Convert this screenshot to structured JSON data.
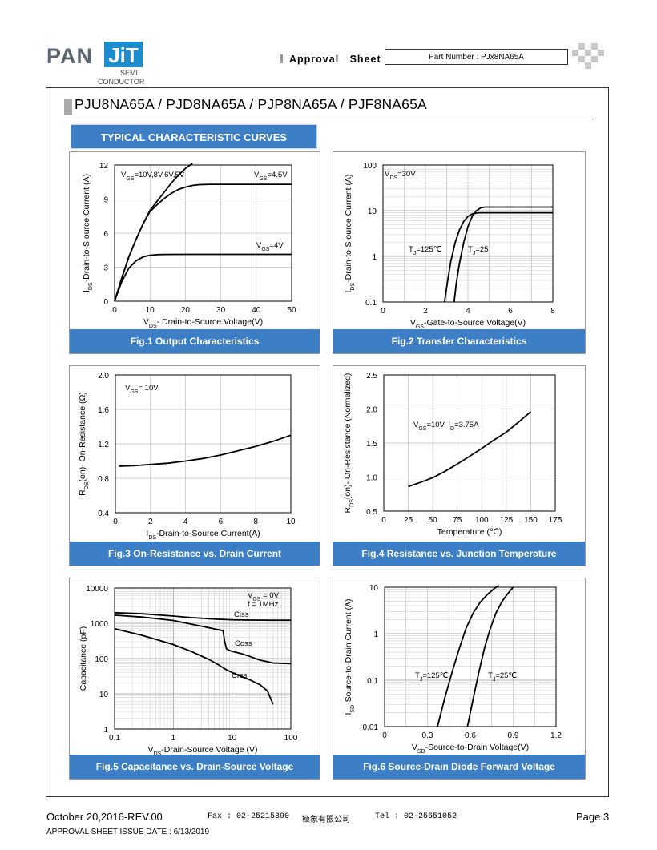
{
  "header": {
    "logo_pan": "PAN",
    "logo_jit": "JiT",
    "logo_semi": "SEMI",
    "logo_conductor": "CONDUCTOR",
    "approval": "Approval   Sheet",
    "part_number": "Part Number : PJx8NA65A"
  },
  "title": "PJU8NA65A / PJD8NA65A / PJP8NA65A / PJF8NA65A",
  "section_title": "TYPICAL CHARACTERISTIC CURVES",
  "colors": {
    "accent": "#3c7fc6",
    "grid": "#bdbdbd"
  },
  "figures": [
    {
      "caption": "Fig.1 Output Characteristics"
    },
    {
      "caption": "Fig.2 Transfer Characteristics"
    },
    {
      "caption": "Fig.3 On-Resistance vs. Drain Current"
    },
    {
      "caption": "Fig.4 Resistance vs. Junction Temperature"
    },
    {
      "caption": "Fig.5 Capacitance vs. Drain-Source Voltage"
    },
    {
      "caption": "Fig.6 Source-Drain Diode Forward Voltage"
    }
  ],
  "chart_data": [
    {
      "type": "line",
      "xlabel": "VDS- Drain-to-Source Voltage(V)",
      "ylabel": "IDS-Drain-to-S ource Current (A)",
      "xlim": [
        0,
        50
      ],
      "ylim": [
        0,
        12
      ],
      "xticks": [
        "0",
        "10",
        "20",
        "30",
        "40",
        "50"
      ],
      "yticks": [
        "0",
        "3",
        "6",
        "9",
        "12"
      ],
      "series": [
        {
          "name": "VGS=10V,8V,6V,5V",
          "x": [
            0,
            2,
            4,
            6,
            8,
            10,
            12,
            14,
            16,
            18,
            20,
            22
          ],
          "y": [
            0,
            2,
            3.9,
            5.4,
            6.8,
            8,
            8.8,
            9.6,
            10.4,
            11.1,
            11.7,
            12.3
          ]
        },
        {
          "name": "VGS=4.5V",
          "x": [
            0,
            2,
            4,
            6,
            8,
            10,
            12,
            14,
            16,
            18,
            20,
            22,
            24,
            27,
            30,
            40,
            50
          ],
          "y": [
            0,
            2,
            3.9,
            5.4,
            6.8,
            7.9,
            8.5,
            9.05,
            9.5,
            9.85,
            10.05,
            10.2,
            10.27,
            10.3,
            10.3,
            10.3,
            10.3
          ]
        },
        {
          "name": "VGS=4V",
          "x": [
            0,
            2,
            4,
            6,
            8,
            10,
            12,
            14,
            20,
            30,
            40,
            50
          ],
          "y": [
            0,
            1.7,
            2.9,
            3.55,
            3.9,
            4.05,
            4.1,
            4.12,
            4.13,
            4.13,
            4.13,
            4.13
          ]
        }
      ]
    },
    {
      "type": "line",
      "xlabel": "VGS-Gate-to-Source Voltage(V)",
      "ylabel": "IDS-Drain-to-S ource Current (A)",
      "xlim": [
        0,
        8
      ],
      "ylim": [
        0.1,
        100
      ],
      "yscale": "log",
      "xticks": [
        "0",
        "2",
        "4",
        "6",
        "8"
      ],
      "yticks": [
        "0.1",
        "1",
        "10",
        "100"
      ],
      "annotation": "VDS=30V",
      "series": [
        {
          "name": "TJ=125℃",
          "x": [
            2.9,
            3.05,
            3.2,
            3.4,
            3.6,
            3.8,
            4.0,
            4.2,
            4.5,
            4.8,
            5.2,
            6,
            7,
            8
          ],
          "y": [
            0.1,
            0.3,
            0.8,
            2,
            3.8,
            5.8,
            7.5,
            8.5,
            9,
            9,
            9,
            9,
            9,
            9
          ]
        },
        {
          "name": "TJ=25",
          "x": [
            3.35,
            3.45,
            3.6,
            3.8,
            4.0,
            4.2,
            4.4,
            4.6,
            4.8,
            5.2,
            6,
            7,
            8
          ],
          "y": [
            0.1,
            0.25,
            0.7,
            2,
            4.5,
            7.5,
            10,
            11.5,
            12,
            12,
            12,
            12,
            12
          ]
        }
      ]
    },
    {
      "type": "line",
      "xlabel": "IDS-Drain-to-Source  Current(A)",
      "ylabel": "RDS(on)- On-Resistance (Ω)",
      "xlim": [
        0,
        10
      ],
      "ylim": [
        0.4,
        2.0
      ],
      "xticks": [
        "0",
        "2",
        "4",
        "6",
        "8",
        "10"
      ],
      "yticks": [
        "0.4",
        "0.8",
        "1.2",
        "1.6",
        "2.0"
      ],
      "series": [
        {
          "name": "VGS= 10V",
          "x": [
            0.2,
            1,
            2,
            3,
            4,
            5,
            6,
            7,
            8,
            9,
            10
          ],
          "y": [
            0.94,
            0.945,
            0.96,
            0.975,
            1.0,
            1.03,
            1.07,
            1.12,
            1.17,
            1.23,
            1.3
          ]
        }
      ]
    },
    {
      "type": "line",
      "xlabel": "Temperature (℃)",
      "ylabel": "RDS(on)- On-Resistance (Normalized)",
      "xlim": [
        0,
        175
      ],
      "ylim": [
        0.5,
        2.5
      ],
      "xticks": [
        "0",
        "25",
        "50",
        "75",
        "100",
        "125",
        "150",
        "175"
      ],
      "yticks": [
        "0.5",
        "1.0",
        "1.5",
        "2.0",
        "2.5"
      ],
      "series": [
        {
          "name": "VGS=10V, ID=3.75A",
          "x": [
            25,
            37,
            50,
            62,
            75,
            87,
            100,
            112,
            125,
            137,
            150
          ],
          "y": [
            0.86,
            0.92,
            0.99,
            1.08,
            1.19,
            1.3,
            1.42,
            1.54,
            1.66,
            1.8,
            1.96
          ]
        }
      ]
    },
    {
      "type": "line",
      "xlabel": "VDS-Drain-Source Voltage (V)",
      "ylabel": "Capacitance (pF)",
      "xlim": [
        0.1,
        100
      ],
      "ylim": [
        1,
        10000
      ],
      "xscale": "log",
      "yscale": "log",
      "xticks": [
        "0.1",
        "1",
        "10",
        "100"
      ],
      "yticks": [
        "1",
        "10",
        "100",
        "1000",
        "10000"
      ],
      "annotation": [
        "VGS = 0V",
        "f = 1MHz"
      ],
      "series": [
        {
          "name": "Ciss",
          "x": [
            0.1,
            0.3,
            1,
            2,
            4,
            6,
            8,
            10,
            20,
            50,
            100
          ],
          "y": [
            2000,
            1850,
            1600,
            1450,
            1350,
            1300,
            1270,
            1250,
            1230,
            1220,
            1220
          ]
        },
        {
          "name": "Coss",
          "x": [
            0.1,
            0.3,
            1,
            2,
            4,
            6,
            7,
            7.5,
            8,
            9,
            10,
            15,
            20,
            30,
            50,
            100
          ],
          "y": [
            1700,
            1500,
            1200,
            950,
            750,
            650,
            620,
            300,
            190,
            170,
            160,
            135,
            115,
            90,
            75,
            72
          ]
        },
        {
          "name": "Crss",
          "x": [
            0.1,
            0.3,
            1,
            2,
            4,
            6,
            8,
            10,
            15,
            20,
            30,
            40,
            50
          ],
          "y": [
            700,
            450,
            250,
            160,
            95,
            65,
            48,
            40,
            30,
            25,
            18,
            12,
            5
          ]
        }
      ]
    },
    {
      "type": "line",
      "xlabel": "VSD-Source-to-Drain Voltage(V)",
      "ylabel": "ISD-Source-to-Drain Current (A)",
      "xlim": [
        0,
        1.2
      ],
      "ylim": [
        0.01,
        10
      ],
      "yscale": "log",
      "xticks": [
        "0",
        "0.3",
        "0.6",
        "0.9",
        "1.2"
      ],
      "yticks": [
        "0.01",
        "0.1",
        "1",
        "10"
      ],
      "series": [
        {
          "name": "TJ=125℃",
          "x": [
            0.37,
            0.42,
            0.47,
            0.52,
            0.57,
            0.62,
            0.67,
            0.72,
            0.77,
            0.8
          ],
          "y": [
            0.01,
            0.04,
            0.14,
            0.45,
            1.3,
            2.8,
            4.8,
            7,
            9.5,
            11
          ]
        },
        {
          "name": "TJ=25℃",
          "x": [
            0.58,
            0.62,
            0.66,
            0.7,
            0.74,
            0.78,
            0.82,
            0.86,
            0.9
          ],
          "y": [
            0.01,
            0.04,
            0.15,
            0.5,
            1.3,
            2.8,
            4.8,
            7.2,
            10
          ]
        }
      ]
    }
  ],
  "footer": {
    "date": "October 20,2016-REV.00",
    "fax": "Fax : 02-25215390",
    "company": "極象有限公司",
    "tel": "Tel : 02-25651052",
    "page": "Page 3",
    "issue": "APPROVAL SHEET ISSUE DATE : 6/13/2019"
  }
}
